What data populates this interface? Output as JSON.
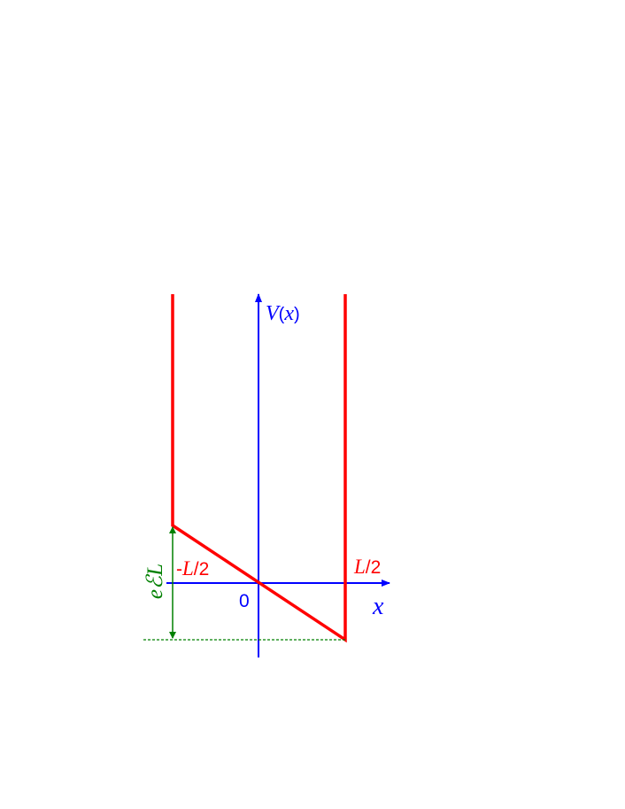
{
  "diagram": {
    "labels": {
      "y_axis_var": "V",
      "y_axis_paren_open": "(",
      "y_axis_arg": "x",
      "y_axis_paren_close": ")",
      "x_axis": "x",
      "origin": "0",
      "left_bound_sign": "-",
      "left_bound_var": "L",
      "left_bound_rest": "/2",
      "right_bound_var": "L",
      "right_bound_rest": "/2",
      "height_label": "eℰL"
    },
    "colors": {
      "axes": "#0000ff",
      "potential": "#ff0000",
      "height_marker": "#008000"
    }
  }
}
